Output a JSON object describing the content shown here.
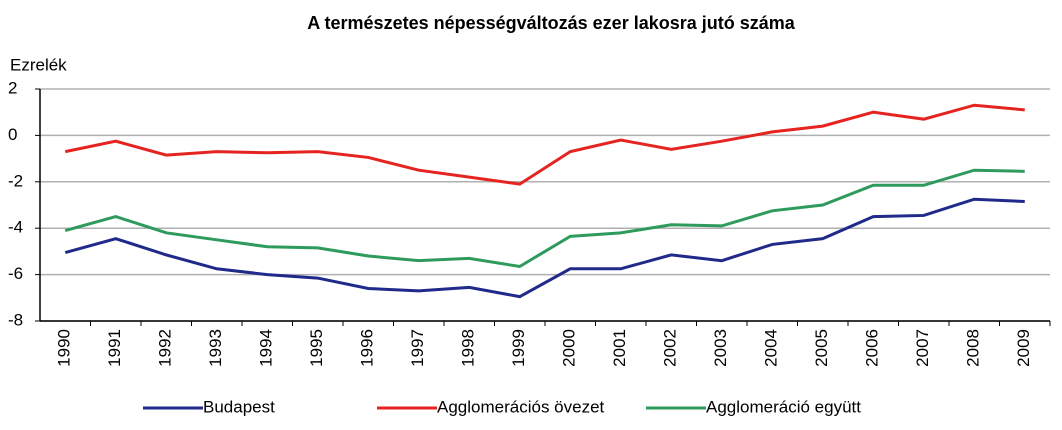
{
  "chart_data": {
    "type": "line",
    "title": "A természetes népességváltozás ezer lakosra jutó száma",
    "y_label": "Ezrelék",
    "categories": [
      "1990",
      "1991",
      "1992",
      "1993",
      "1994",
      "1995",
      "1996",
      "1997",
      "1998",
      "1999",
      "2000",
      "2001",
      "2002",
      "2003",
      "2004",
      "2005",
      "2006",
      "2007",
      "2008",
      "2009"
    ],
    "series": [
      {
        "name": "Budapest",
        "color": "#1f2a8a",
        "values": [
          -5.05,
          -4.45,
          -5.15,
          -5.75,
          -6.0,
          -6.15,
          -6.6,
          -6.7,
          -6.55,
          -6.95,
          -5.75,
          -5.75,
          -5.15,
          -5.4,
          -4.7,
          -4.45,
          -3.5,
          -3.45,
          -2.75,
          -2.85
        ]
      },
      {
        "name": "Agglomerációs övezet",
        "color": "#e52421",
        "values": [
          -0.7,
          -0.25,
          -0.85,
          -0.7,
          -0.75,
          -0.7,
          -0.95,
          -1.5,
          -1.8,
          -2.1,
          -0.7,
          -0.2,
          -0.6,
          -0.25,
          0.15,
          0.4,
          1.0,
          0.7,
          1.3,
          1.1
        ]
      },
      {
        "name": "Agglomeráció együtt",
        "color": "#2e9a5c",
        "values": [
          -4.1,
          -3.5,
          -4.2,
          -4.5,
          -4.8,
          -4.85,
          -5.2,
          -5.4,
          -5.3,
          -5.65,
          -4.35,
          -4.2,
          -3.85,
          -3.9,
          -3.25,
          -3.0,
          -2.15,
          -2.15,
          -1.5,
          -1.55
        ]
      }
    ],
    "ylim": [
      -8,
      2
    ],
    "yticks": [
      -8,
      -6,
      -4,
      -2,
      0,
      2
    ],
    "grid": true,
    "legend": "bottom"
  }
}
